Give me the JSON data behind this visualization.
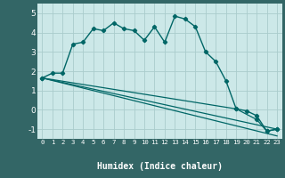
{
  "xlabel": "Humidex (Indice chaleur)",
  "bg_color": "#c8e8e8",
  "plot_bg_color": "#cce8e8",
  "grid_color": "#aacccc",
  "line_color": "#006666",
  "bottom_bar_color": "#336666",
  "xlim": [
    -0.5,
    23.5
  ],
  "ylim": [
    -1.5,
    5.5
  ],
  "yticks": [
    -1,
    0,
    1,
    2,
    3,
    4,
    5
  ],
  "xticks": [
    0,
    1,
    2,
    3,
    4,
    5,
    6,
    7,
    8,
    9,
    10,
    11,
    12,
    13,
    14,
    15,
    16,
    17,
    18,
    19,
    20,
    21,
    22,
    23
  ],
  "line1_x": [
    0,
    1,
    2,
    3,
    4,
    5,
    6,
    7,
    8,
    9,
    10,
    11,
    12,
    13,
    14,
    15,
    16,
    17,
    18,
    19,
    20,
    21,
    22,
    23
  ],
  "line1_y": [
    1.65,
    1.9,
    1.9,
    3.4,
    3.5,
    4.2,
    4.1,
    4.5,
    4.2,
    4.1,
    3.6,
    4.3,
    3.5,
    4.85,
    4.7,
    4.3,
    3.0,
    2.5,
    1.5,
    0.05,
    -0.05,
    -0.3,
    -1.1,
    -1.0
  ],
  "line2_x": [
    0,
    23
  ],
  "line2_y": [
    1.65,
    -1.0
  ],
  "line3_x": [
    0,
    23
  ],
  "line3_y": [
    1.65,
    -1.35
  ],
  "line4_x": [
    0,
    19,
    21,
    22,
    23
  ],
  "line4_y": [
    1.65,
    0.05,
    -0.5,
    -1.1,
    -1.0
  ]
}
